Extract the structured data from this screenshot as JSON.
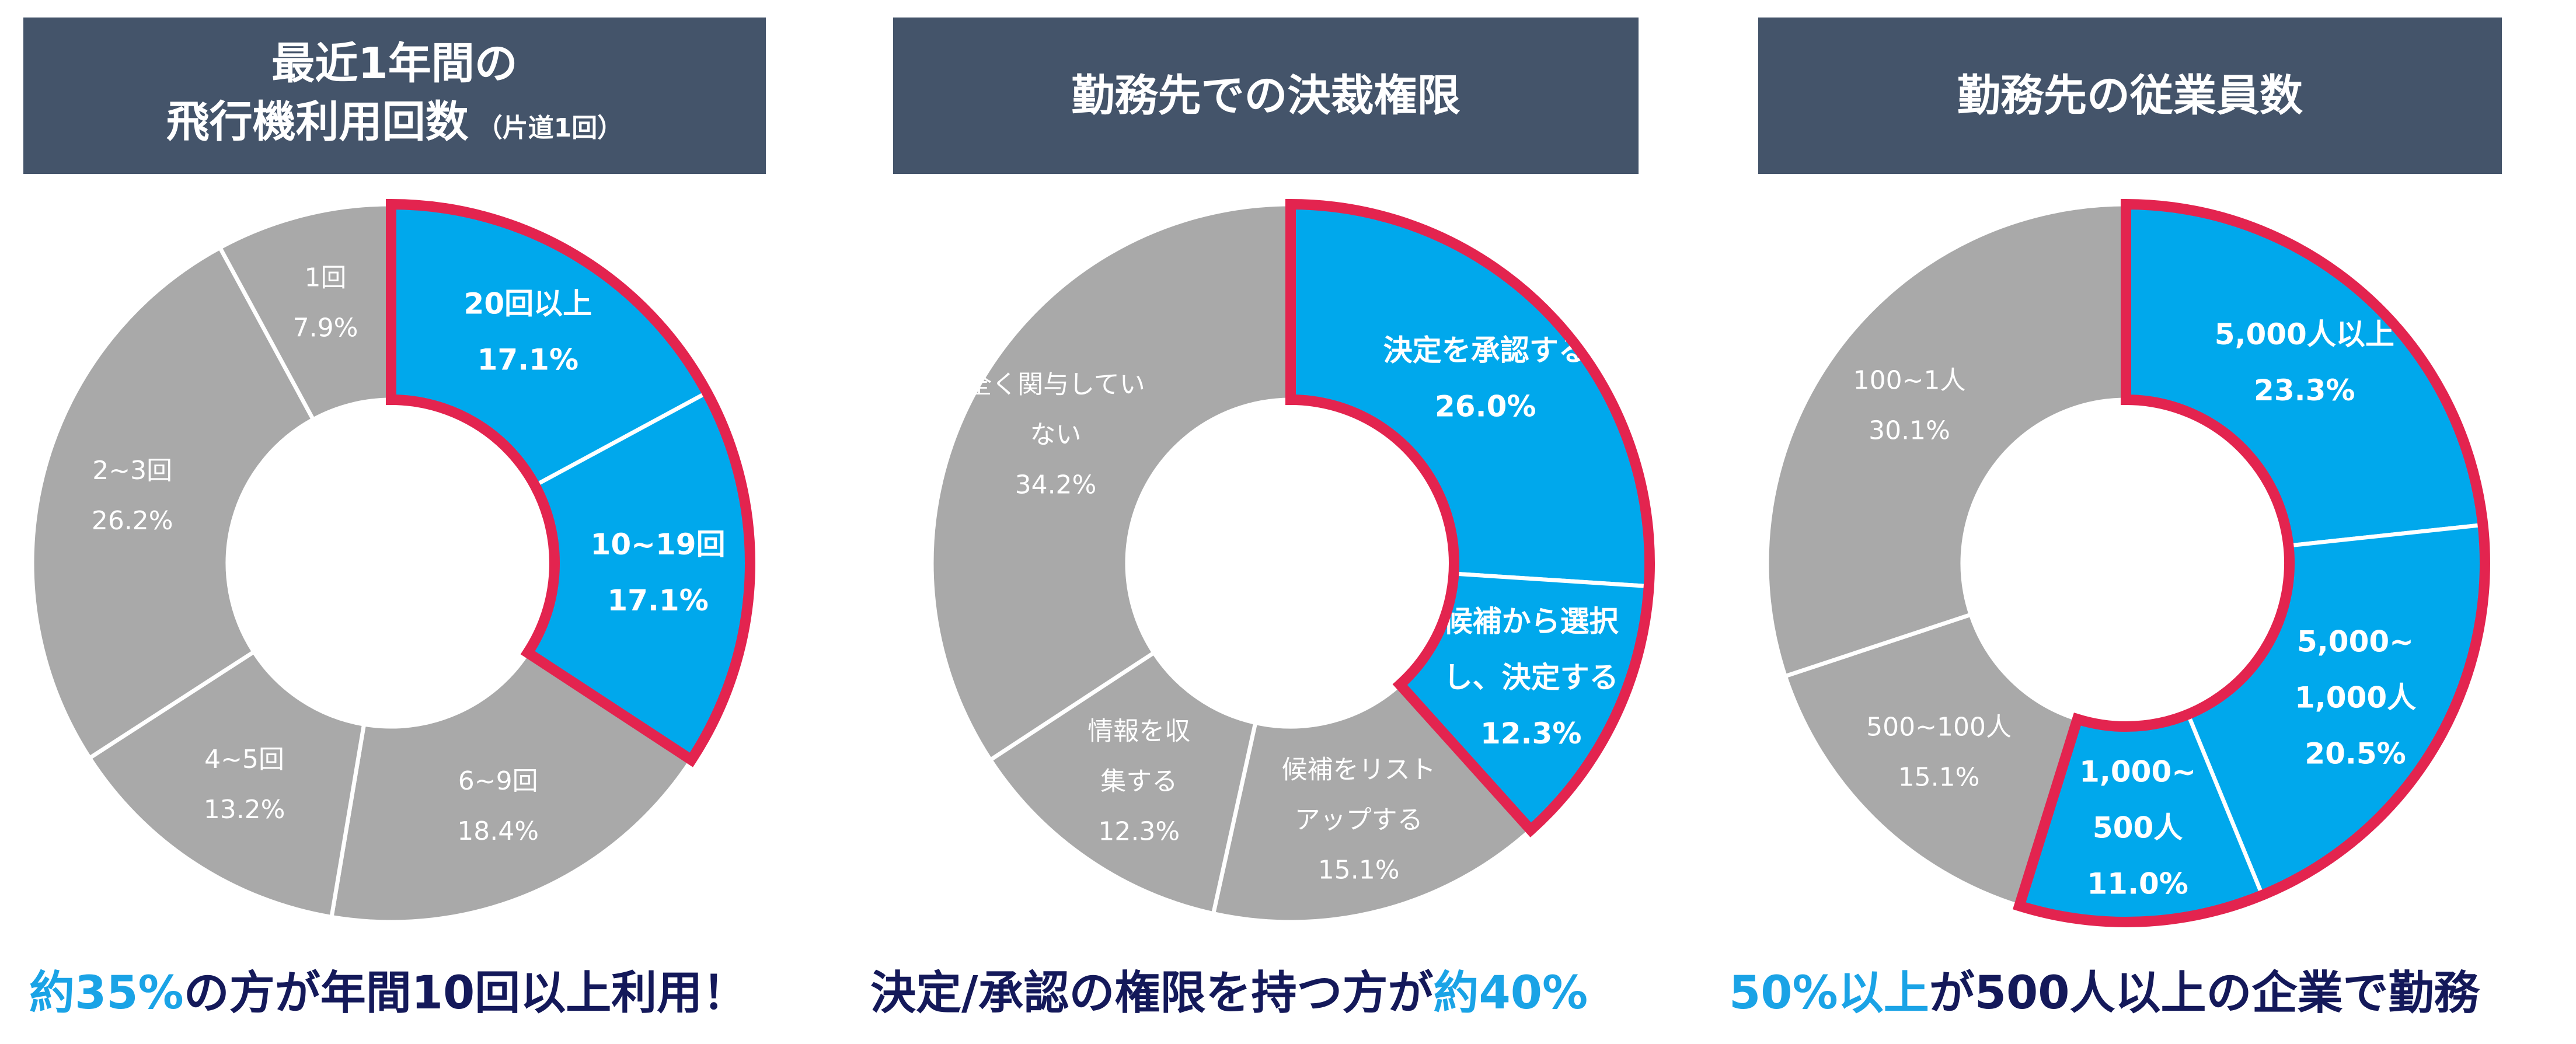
{
  "colors": {
    "header_bg": "#44546a",
    "highlight": "#00a8ec",
    "grey": "#a9a9a9",
    "outline": "#e3244f",
    "caption_navy": "#14195a",
    "caption_blue": "#1aa3e6"
  },
  "panels": [
    {
      "header": {
        "line1": "最近1年間の",
        "line2": "飛行機利用回数",
        "small": "（片道1回）"
      },
      "caption": {
        "parts": [
          {
            "text": "約35%",
            "color": "blue"
          },
          {
            "text": "の方が年間10回以上利用！",
            "color": "navy"
          }
        ]
      },
      "chart_data": {
        "type": "pie",
        "slices": [
          {
            "lines": [
              "20回以上"
            ],
            "value": 17.1,
            "label": "17.1%",
            "highlight": true
          },
          {
            "lines": [
              "10~19回"
            ],
            "value": 17.1,
            "label": "17.1%",
            "highlight": true
          },
          {
            "lines": [
              "6~9回"
            ],
            "value": 18.4,
            "label": "18.4%",
            "highlight": false
          },
          {
            "lines": [
              "4~5回"
            ],
            "value": 13.2,
            "label": "13.2%",
            "highlight": false
          },
          {
            "lines": [
              "2~3回"
            ],
            "value": 26.2,
            "label": "26.2%",
            "highlight": false
          },
          {
            "lines": [
              "1回"
            ],
            "value": 7.9,
            "label": "7.9%",
            "highlight": false
          }
        ]
      }
    },
    {
      "header": {
        "line1": "勤務先での決裁権限",
        "line2": "",
        "small": ""
      },
      "caption": {
        "parts": [
          {
            "text": "決定/承認の権限を持つ方が",
            "color": "navy"
          },
          {
            "text": "約40%",
            "color": "blue"
          }
        ]
      },
      "chart_data": {
        "type": "pie",
        "slices": [
          {
            "lines": [
              "決定を承認する"
            ],
            "value": 26.0,
            "label": "26.0%",
            "highlight": true
          },
          {
            "lines": [
              "候補から選択",
              "し、決定する"
            ],
            "value": 12.3,
            "label": "12.3%",
            "highlight": true
          },
          {
            "lines": [
              "候補をリスト",
              "アップする"
            ],
            "value": 15.1,
            "label": "15.1%",
            "highlight": false
          },
          {
            "lines": [
              "情報を収",
              "集する"
            ],
            "value": 12.3,
            "label": "12.3%",
            "highlight": false
          },
          {
            "lines": [
              "全く関与してい",
              "ない"
            ],
            "value": 34.2,
            "label": "34.2%",
            "highlight": false
          }
        ]
      }
    },
    {
      "header": {
        "line1": "勤務先の従業員数",
        "line2": "",
        "small": ""
      },
      "caption": {
        "parts": [
          {
            "text": "50%以上",
            "color": "blue"
          },
          {
            "text": "が500人以上の企業で勤務",
            "color": "navy"
          }
        ]
      },
      "chart_data": {
        "type": "pie",
        "slices": [
          {
            "lines": [
              "5,000人以上"
            ],
            "value": 23.3,
            "label": "23.3%",
            "highlight": true
          },
          {
            "lines": [
              "5,000~",
              "1,000人"
            ],
            "value": 20.5,
            "label": "20.5%",
            "highlight": true
          },
          {
            "lines": [
              "1,000~",
              "500人"
            ],
            "value": 11.0,
            "label": "11.0%",
            "highlight": true
          },
          {
            "lines": [
              "500~100人"
            ],
            "value": 15.1,
            "label": "15.1%",
            "highlight": false
          },
          {
            "lines": [
              "100~1人"
            ],
            "value": 30.1,
            "label": "30.1%",
            "highlight": false
          }
        ]
      }
    }
  ]
}
